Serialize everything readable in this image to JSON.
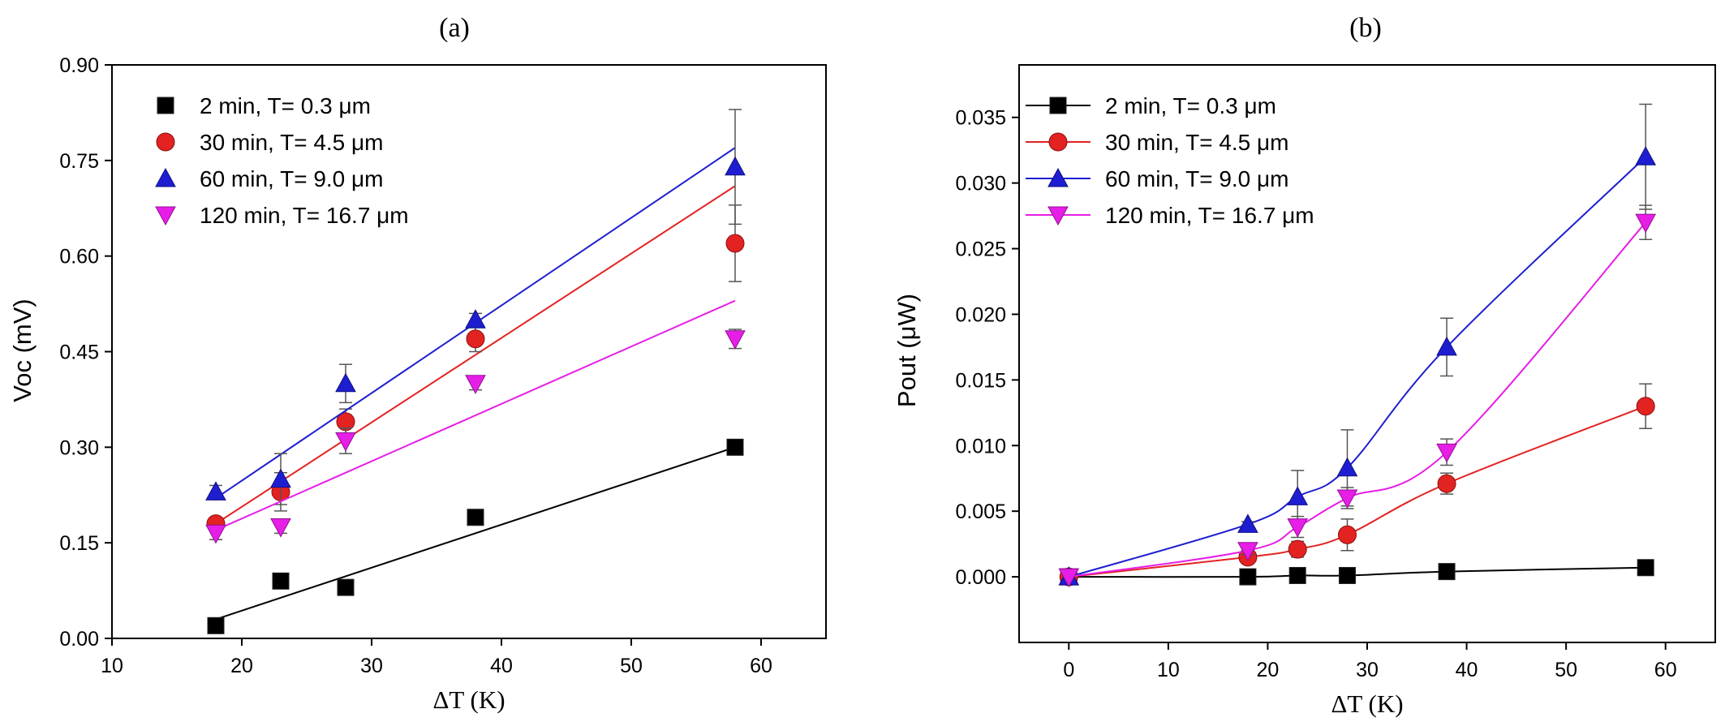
{
  "chart_data": [
    {
      "type": "scatter",
      "panel": "a",
      "title": "(a)",
      "xlabel": "ΔT (K)",
      "ylabel": "Voc (mV)",
      "xlim": [
        10,
        65
      ],
      "ylim": [
        0.0,
        0.9
      ],
      "xticks": [
        "10",
        "20",
        "30",
        "40",
        "50",
        "60"
      ],
      "xtick_values": [
        10,
        20,
        30,
        40,
        50,
        60
      ],
      "yticks": [
        "0.00",
        "0.15",
        "0.30",
        "0.45",
        "0.60",
        "0.75",
        "0.90"
      ],
      "ytick_values": [
        0.0,
        0.15,
        0.3,
        0.45,
        0.6,
        0.75,
        0.9
      ],
      "legend_position": "top-left",
      "fit": "linear",
      "series": [
        {
          "name": "2 min, T= 0.3 μm",
          "color": "#000000",
          "marker": "square",
          "x": [
            18,
            23,
            28,
            38,
            58
          ],
          "y": [
            0.02,
            0.09,
            0.08,
            0.19,
            0.3
          ],
          "err": [
            0.005,
            0.005,
            0.01,
            0.005,
            0.005
          ],
          "fit_line": [
            [
              18,
              0.03
            ],
            [
              58,
              0.3
            ]
          ]
        },
        {
          "name": "30 min, T= 4.5 μm",
          "color": "#e32222",
          "marker": "circle",
          "x": [
            18,
            23,
            28,
            38,
            58
          ],
          "y": [
            0.18,
            0.23,
            0.34,
            0.47,
            0.62
          ],
          "err": [
            0.01,
            0.03,
            0.02,
            0.02,
            0.06
          ],
          "fit_line": [
            [
              18,
              0.18
            ],
            [
              58,
              0.71
            ]
          ]
        },
        {
          "name": "60 min, T= 9.0 μm",
          "color": "#1e1ed0",
          "marker": "triangle-up",
          "x": [
            18,
            23,
            28,
            38,
            58
          ],
          "y": [
            0.23,
            0.25,
            0.4,
            0.5,
            0.74
          ],
          "err": [
            0.01,
            0.04,
            0.03,
            0.01,
            0.09
          ],
          "fit_line": [
            [
              18,
              0.22
            ],
            [
              58,
              0.77
            ]
          ]
        },
        {
          "name": "120 min, T= 16.7 μm",
          "color": "#e61ee6",
          "marker": "triangle-down",
          "x": [
            18,
            23,
            28,
            38,
            58
          ],
          "y": [
            0.165,
            0.175,
            0.31,
            0.4,
            0.47
          ],
          "err": [
            0.01,
            0.01,
            0.02,
            0.01,
            0.015
          ],
          "fit_line": [
            [
              18,
              0.17
            ],
            [
              58,
              0.53
            ]
          ]
        }
      ]
    },
    {
      "type": "line",
      "panel": "b",
      "title": "(b)",
      "xlabel": "ΔT (K)",
      "ylabel": "Pout (μW)",
      "xlim": [
        -5,
        65
      ],
      "ylim": [
        -0.005,
        0.039
      ],
      "xticks": [
        "0",
        "10",
        "20",
        "30",
        "40",
        "50",
        "60"
      ],
      "xtick_values": [
        0,
        10,
        20,
        30,
        40,
        50,
        60
      ],
      "yticks": [
        "0.000",
        "0.005",
        "0.010",
        "0.015",
        "0.020",
        "0.025",
        "0.030",
        "0.035"
      ],
      "ytick_values": [
        0.0,
        0.005,
        0.01,
        0.015,
        0.02,
        0.025,
        0.03,
        0.035
      ],
      "legend_position": "top-left",
      "series": [
        {
          "name": "2 min, T= 0.3 μm",
          "color": "#000000",
          "marker": "square",
          "x": [
            0,
            18,
            23,
            28,
            38,
            58
          ],
          "y": [
            0.0,
            0.0,
            0.0001,
            0.0001,
            0.0004,
            0.0007
          ],
          "err": [
            0,
            0.0002,
            0.0002,
            0.0002,
            0.0002,
            0.0002
          ]
        },
        {
          "name": "30 min, T= 4.5 μm",
          "color": "#e32222",
          "marker": "circle",
          "x": [
            0,
            18,
            23,
            28,
            38,
            58
          ],
          "y": [
            0.0,
            0.0015,
            0.0021,
            0.0032,
            0.0071,
            0.013
          ],
          "err": [
            0,
            0.0003,
            0.0006,
            0.0012,
            0.0008,
            0.0017
          ]
        },
        {
          "name": "60 min, T= 9.0 μm",
          "color": "#1e1ed0",
          "marker": "triangle-up",
          "x": [
            0,
            18,
            23,
            28,
            38,
            58
          ],
          "y": [
            0.0,
            0.004,
            0.0061,
            0.0083,
            0.0175,
            0.032
          ],
          "err": [
            0,
            0.0002,
            0.002,
            0.0029,
            0.0022,
            0.004
          ]
        },
        {
          "name": "120 min, T= 16.7 μm",
          "color": "#e61ee6",
          "marker": "triangle-down",
          "x": [
            0,
            18,
            23,
            28,
            38,
            58
          ],
          "y": [
            0.0,
            0.002,
            0.0038,
            0.006,
            0.0095,
            0.027
          ],
          "err": [
            0,
            0.0003,
            0.0008,
            0.0008,
            0.001,
            0.0013
          ]
        }
      ]
    }
  ]
}
